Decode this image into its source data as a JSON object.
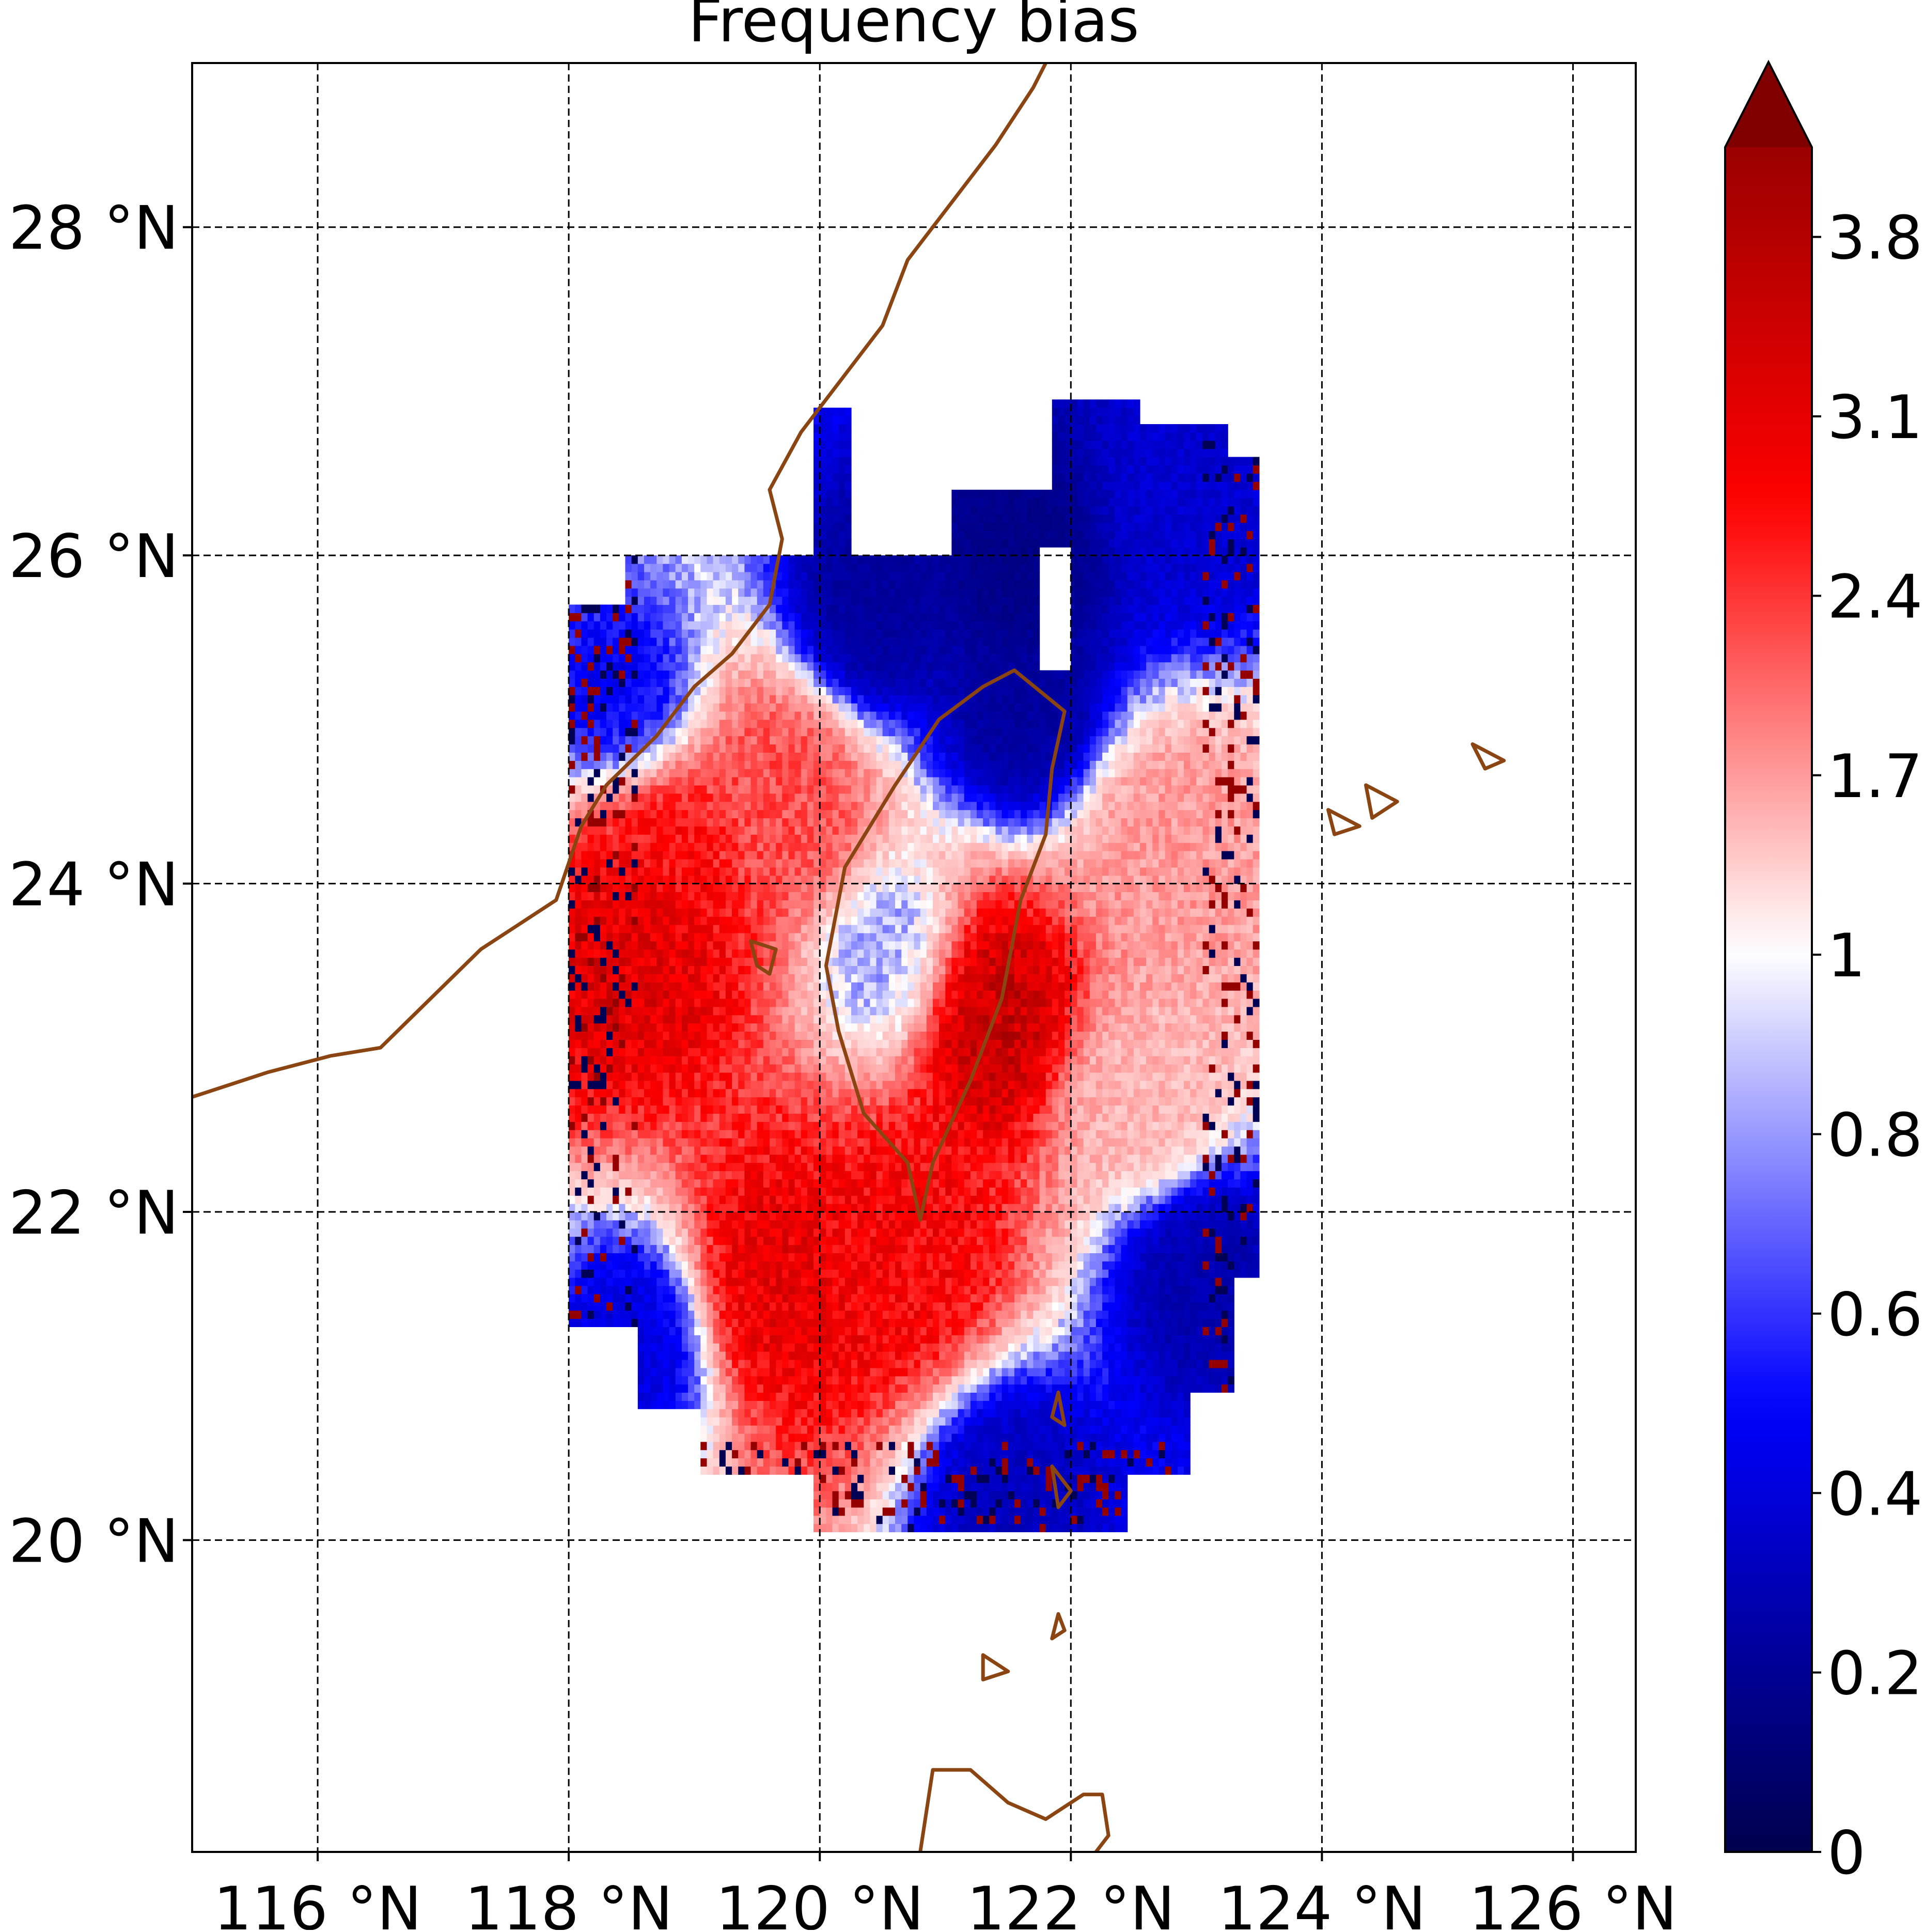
{
  "chart_data": {
    "type": "heatmap",
    "title": "Frequency bias",
    "xlabel": "",
    "ylabel": "",
    "xlim": [
      115.0,
      126.5
    ],
    "ylim": [
      18.1,
      29.0
    ],
    "grid": true,
    "x_ticks": [
      116,
      118,
      120,
      122,
      124,
      126
    ],
    "x_tick_labels": [
      "116 °N",
      "118 °N",
      "120 °N",
      "122 °N",
      "124 °N",
      "126 °N"
    ],
    "y_ticks": [
      20,
      22,
      24,
      26,
      28
    ],
    "y_tick_labels": [
      "20 °N",
      "22 °N",
      "24 °N",
      "26 °N",
      "28 °N"
    ],
    "colorbar": {
      "range": [
        0,
        4.2
      ],
      "extend": "max",
      "tick_values": [
        0,
        0.2,
        0.4,
        0.6,
        0.8,
        1,
        1.7,
        2.4,
        3.1,
        3.8
      ],
      "tick_labels": [
        "0",
        "0.2",
        "0.4",
        "0.6",
        "0.8",
        "1",
        "1.7",
        "2.4",
        "3.1",
        "3.8"
      ],
      "colormap": "seismic-like",
      "colors": {
        "low": "#00004d",
        "mid_blue": "#0000ff",
        "center": "#ffffff",
        "mid_red": "#ff0000",
        "high": "#800000"
      }
    },
    "coastline_color": "#8b4513",
    "data_extent": {
      "lon": [
        118.0,
        123.45
      ],
      "lat": [
        20.05,
        26.95
      ]
    },
    "regions": [
      {
        "name": "north-blue",
        "lon": 121.6,
        "lat": 25.9,
        "value": 0.15
      },
      {
        "name": "north-blue-2",
        "lon": 120.4,
        "lat": 25.6,
        "value": 0.2
      },
      {
        "name": "northeast-blue",
        "lon": 122.9,
        "lat": 26.3,
        "value": 0.35
      },
      {
        "name": "taiwan-north-blue",
        "lon": 121.6,
        "lat": 25.0,
        "value": 0.2
      },
      {
        "name": "strait-red",
        "lon": 119.7,
        "lat": 24.5,
        "value": 2.0
      },
      {
        "name": "west-red",
        "lon": 118.5,
        "lat": 23.6,
        "value": 2.9
      },
      {
        "name": "west-red-2",
        "lon": 118.7,
        "lat": 24.2,
        "value": 2.5
      },
      {
        "name": "taiwan-center-blue",
        "lon": 120.6,
        "lat": 23.5,
        "value": 0.7
      },
      {
        "name": "east-coast-red",
        "lon": 121.3,
        "lat": 23.2,
        "value": 3.3
      },
      {
        "name": "south-red",
        "lon": 120.6,
        "lat": 21.7,
        "value": 2.6
      },
      {
        "name": "southwest-red",
        "lon": 119.6,
        "lat": 21.5,
        "value": 2.8
      },
      {
        "name": "east-pink",
        "lon": 122.7,
        "lat": 24.2,
        "value": 1.5
      },
      {
        "name": "east-pink-2",
        "lon": 122.5,
        "lat": 22.7,
        "value": 1.3
      },
      {
        "name": "southeast-blue",
        "lon": 123.0,
        "lat": 21.6,
        "value": 0.25
      },
      {
        "name": "south-blue",
        "lon": 121.5,
        "lat": 20.3,
        "value": 0.3
      },
      {
        "name": "southwest-blue",
        "lon": 118.6,
        "lat": 21.2,
        "value": 0.35
      },
      {
        "name": "northwest-blue",
        "lon": 118.4,
        "lat": 25.0,
        "value": 0.4
      }
    ]
  }
}
